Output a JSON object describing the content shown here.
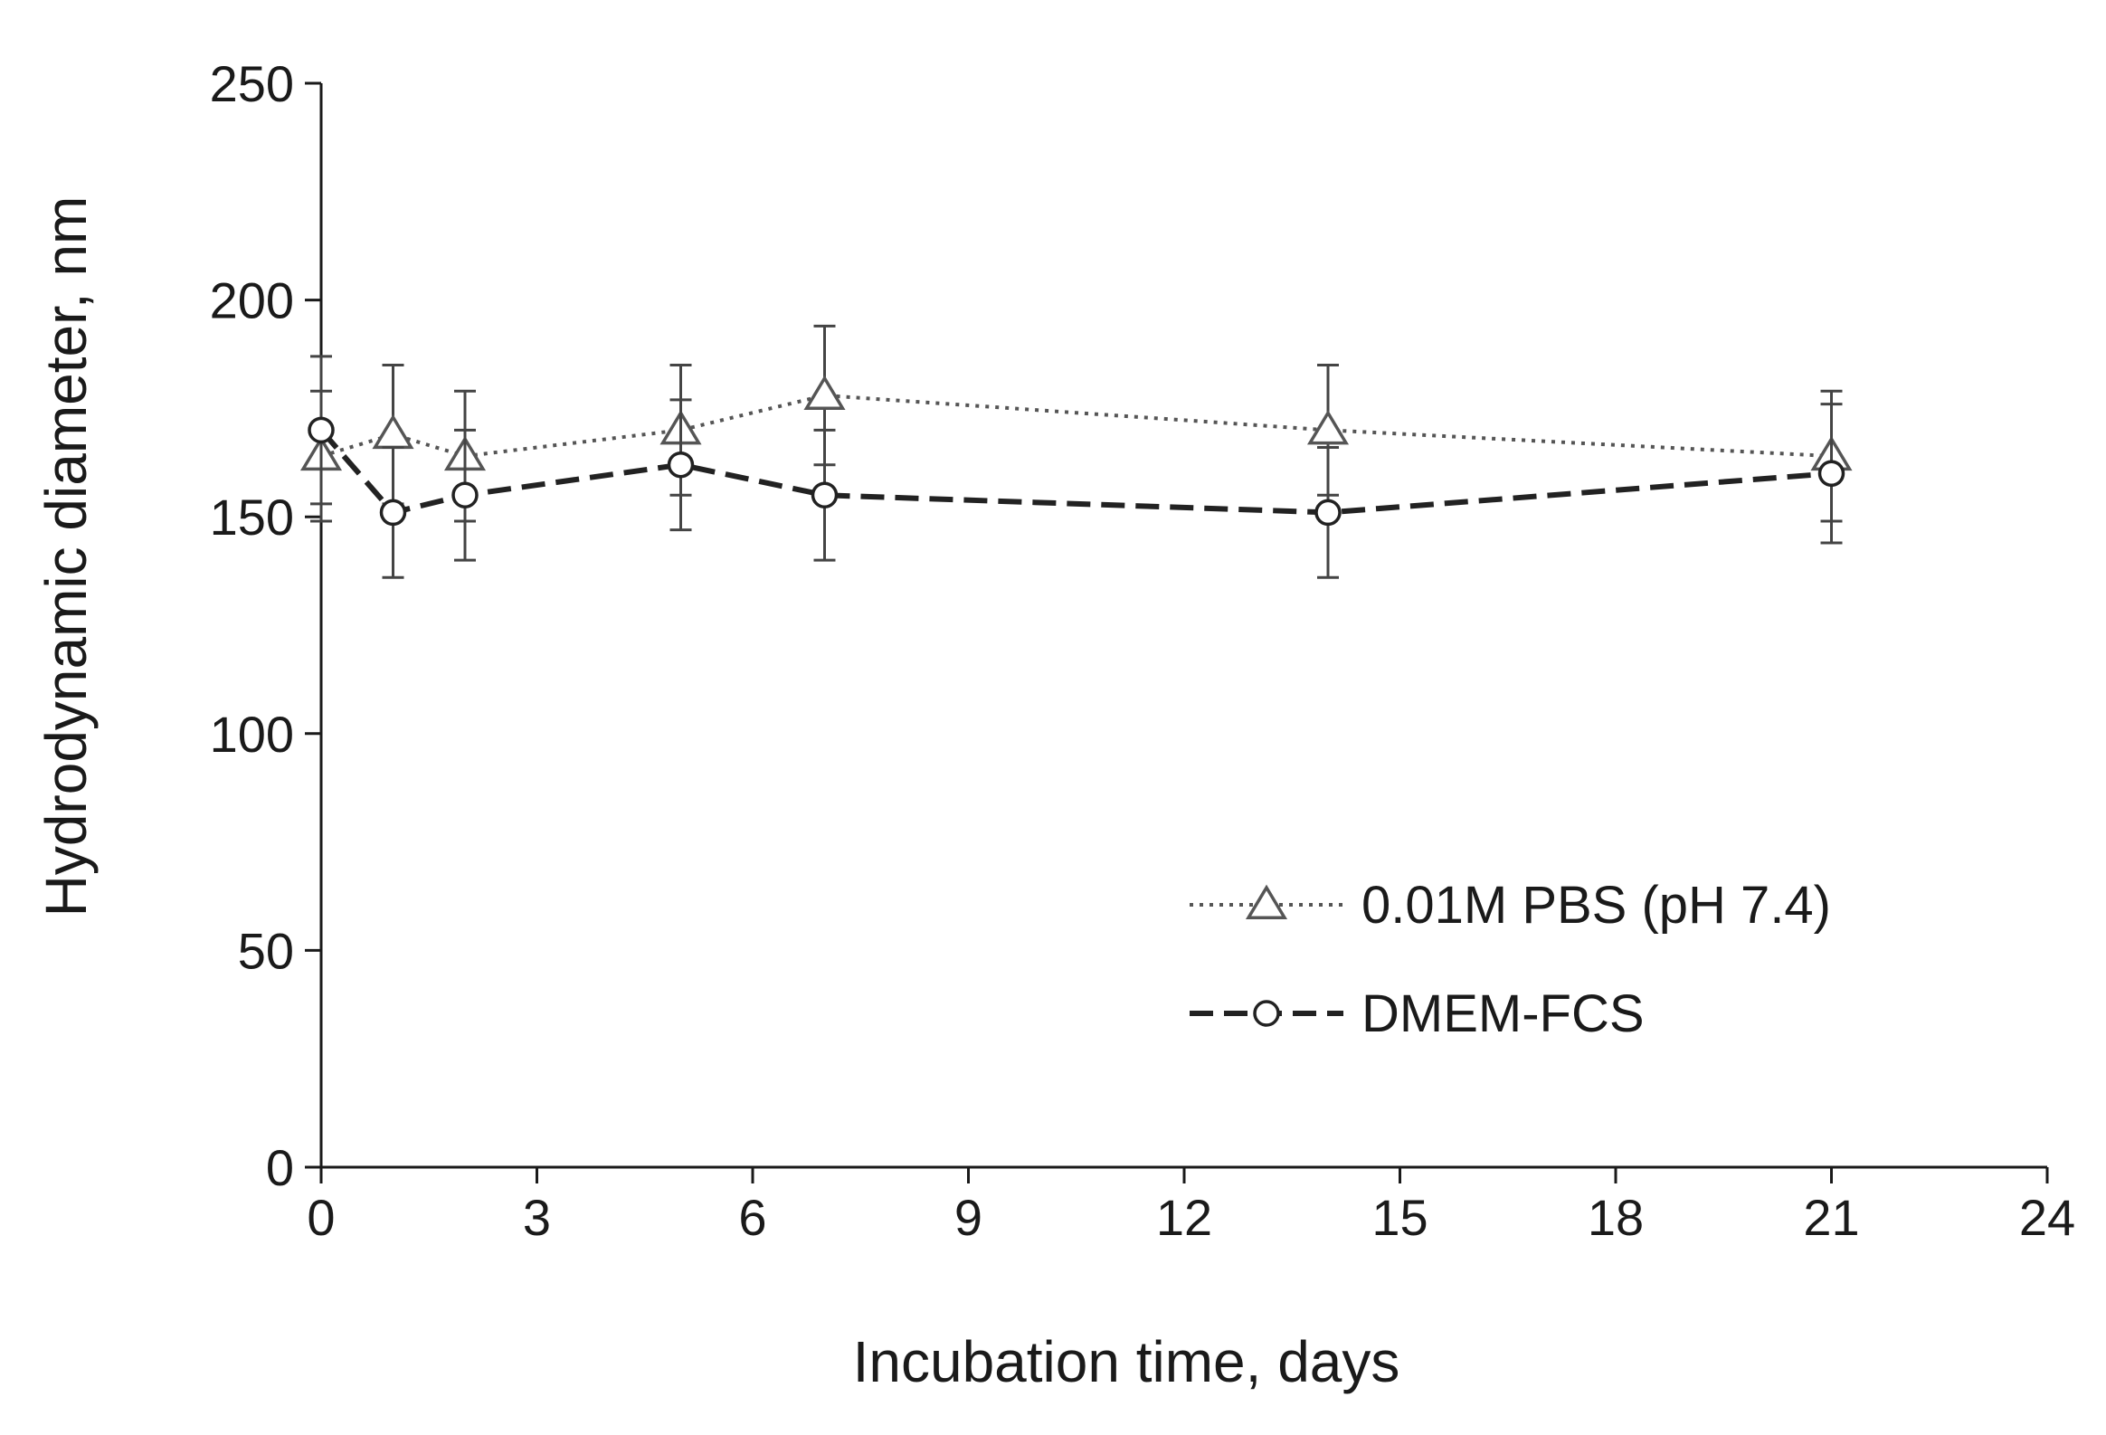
{
  "chart_data": {
    "type": "line",
    "title": "",
    "xlabel": "Incubation  time,  days",
    "ylabel": "Hydrodynamic  diameter,  nm",
    "xlim": [
      0,
      24
    ],
    "ylim": [
      0,
      250
    ],
    "xticks": [
      0,
      3,
      6,
      9,
      12,
      15,
      18,
      21,
      24
    ],
    "yticks": [
      0,
      50,
      100,
      150,
      200,
      250
    ],
    "grid": false,
    "legend_position": "lower-right",
    "series": [
      {
        "name": "0.01M PBS (pH 7.4)",
        "marker": "triangle",
        "line_style": "dotted",
        "color": "#555555",
        "x": [
          0,
          1,
          2,
          5,
          7,
          14,
          21
        ],
        "y": [
          164,
          169,
          164,
          170,
          178,
          170,
          164
        ],
        "error": [
          15,
          16,
          15,
          15,
          16,
          15,
          15
        ]
      },
      {
        "name": "DMEM-FCS",
        "marker": "circle",
        "line_style": "dashed",
        "color": "#222222",
        "x": [
          0,
          1,
          2,
          5,
          7,
          14,
          21
        ],
        "y": [
          170,
          151,
          155,
          162,
          155,
          151,
          160
        ],
        "error": [
          17,
          15,
          15,
          15,
          15,
          15,
          16
        ]
      }
    ]
  }
}
